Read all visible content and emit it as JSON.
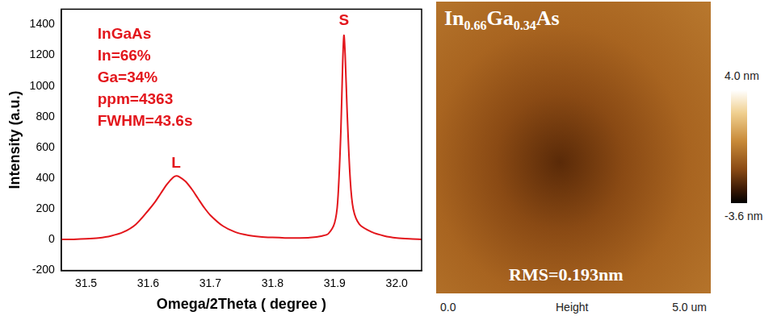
{
  "chart_data": [
    {
      "type": "line",
      "xlabel": "Omega/2Theta ( degree )",
      "ylabel": "Intensity (a.u.)",
      "annotations": [
        "InGaAs",
        "In=66%",
        "Ga=34%",
        "ppm=4363",
        "FWHM=43.6s"
      ],
      "peak_labels": [
        {
          "text": "L",
          "x": 31.645,
          "y": 445
        },
        {
          "text": "S",
          "x": 31.915,
          "y": 1375
        }
      ],
      "xlim": [
        31.46,
        32.04
      ],
      "xticks": [
        31.5,
        31.6,
        31.7,
        31.8,
        31.9,
        {
          "value": 32,
          "label": "32.0"
        }
      ],
      "ylim": [
        -200,
        1500
      ],
      "yticks": [
        -200,
        0,
        200,
        400,
        600,
        800,
        1000,
        1200,
        1400
      ],
      "grid": false,
      "series": [
        {
          "name": "InGaAs",
          "color": "#e3161c",
          "x": [
            31.46,
            31.48,
            31.5,
            31.52,
            31.54,
            31.56,
            31.58,
            31.6,
            31.61,
            31.62,
            31.63,
            31.64,
            31.645,
            31.65,
            31.66,
            31.67,
            31.68,
            31.69,
            31.7,
            31.72,
            31.74,
            31.76,
            31.78,
            31.8,
            31.82,
            31.84,
            31.86,
            31.88,
            31.89,
            31.9,
            31.905,
            31.91,
            31.913,
            31.915,
            31.917,
            31.92,
            31.925,
            31.93,
            31.94,
            31.96,
            31.98,
            32.0,
            32.02,
            32.04
          ],
          "values": [
            2,
            3,
            6,
            12,
            25,
            50,
            100,
            190,
            240,
            300,
            360,
            405,
            415,
            410,
            380,
            330,
            270,
            210,
            160,
            90,
            50,
            30,
            20,
            15,
            12,
            12,
            14,
            25,
            40,
            110,
            250,
            700,
            1150,
            1330,
            1200,
            850,
            400,
            200,
            100,
            50,
            25,
            12,
            6,
            3
          ]
        }
      ]
    },
    {
      "type": "image",
      "title": "In0.66Ga0.34As",
      "annotation": "RMS=0.193nm",
      "xlabel": "Height",
      "xlim": [
        0,
        5
      ],
      "xticks": [
        {
          "value": 0,
          "label": "0.0"
        },
        {
          "value": 5,
          "label": "5.0 um"
        }
      ],
      "color_range": [
        -3.6,
        4.0
      ],
      "color_ticks": [
        {
          "value": 4.0,
          "label": "4.0 nm"
        },
        {
          "value": -3.6,
          "label": "-3.6 nm"
        }
      ]
    }
  ]
}
